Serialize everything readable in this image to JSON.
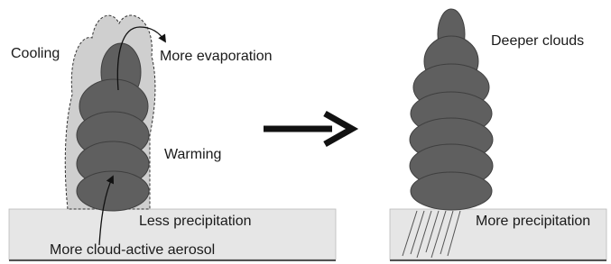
{
  "left_panel": {
    "cooling": "Cooling",
    "more_evaporation": "More evaporation",
    "warming": "Warming",
    "less_precipitation": "Less precipitation",
    "aerosol": "More cloud-active aerosol"
  },
  "right_panel": {
    "deeper_clouds": "Deeper clouds",
    "more_precipitation": "More precipitation"
  }
}
